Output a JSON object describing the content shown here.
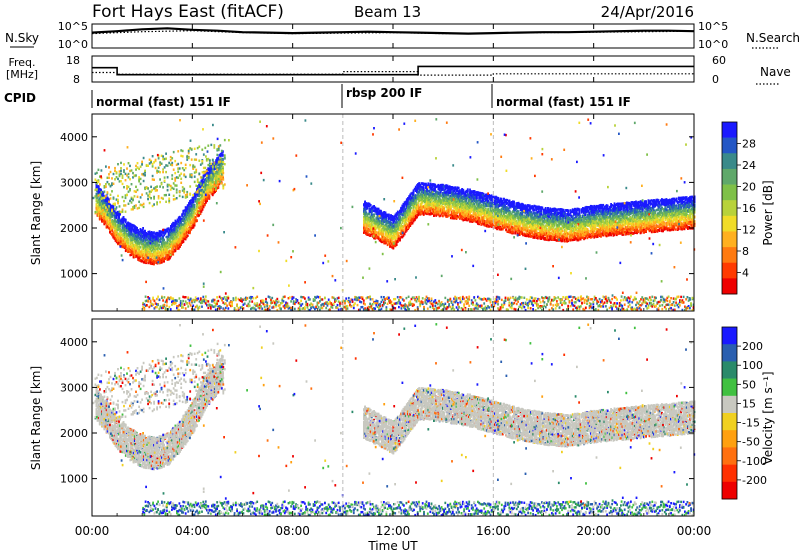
{
  "header": {
    "station": "Fort Hays East (fitACF)",
    "beam": "Beam 13",
    "date": "24/Apr/2016"
  },
  "chart_data": [
    {
      "type": "line",
      "panel": "noise",
      "left_label": "N.Sky",
      "right_label": "N.Search",
      "left_ticks": [
        "10^5",
        "10^0"
      ],
      "right_ticks": [
        "10^5",
        "10^0"
      ],
      "series": [
        {
          "name": "N.Sky",
          "style": "solid",
          "x": [
            0,
            1,
            2,
            3,
            4,
            5,
            6,
            7,
            8,
            9,
            10,
            11,
            12,
            13,
            14,
            15,
            16,
            17,
            18,
            19,
            20,
            21,
            22,
            23,
            24
          ],
          "values": [
            3.2,
            3.5,
            3.9,
            4.1,
            3.8,
            3.6,
            3.3,
            3.2,
            3.1,
            3.2,
            3.3,
            3.4,
            3.3,
            3.2,
            3.1,
            3.0,
            3.1,
            3.2,
            3.3,
            3.3,
            3.4,
            3.5,
            3.6,
            3.6,
            3.5
          ]
        },
        {
          "name": "N.Search",
          "style": "dotted",
          "x": [
            0,
            2,
            4,
            6,
            8,
            10,
            12,
            14,
            16,
            18,
            20,
            22,
            24
          ],
          "values": [
            3.0,
            3.4,
            3.6,
            3.2,
            3.0,
            3.1,
            3.2,
            3.0,
            3.1,
            3.2,
            3.3,
            3.4,
            3.5
          ]
        }
      ]
    },
    {
      "type": "line",
      "panel": "frequency",
      "left_label": "Freq.",
      "left_units": "[MHz]",
      "right_label": "Nave",
      "left_ticks": [
        "18",
        "8"
      ],
      "right_ticks": [
        "60",
        "0"
      ],
      "series": [
        {
          "name": "Freq.",
          "style": "solid",
          "x": [
            0,
            1.0,
            1.0,
            13.0,
            13.0,
            24
          ],
          "values": [
            13.5,
            13.5,
            10.8,
            10.8,
            14.0,
            14.0
          ]
        },
        {
          "name": "Nave",
          "style": "dotted",
          "x": [
            0,
            1.0,
            1.0,
            10.0,
            10.0,
            13.0,
            13.0,
            16.0,
            16.0,
            24
          ],
          "values": [
            22,
            22,
            18,
            18,
            24,
            24,
            16,
            16,
            19,
            19
          ]
        }
      ]
    },
    {
      "type": "table",
      "panel": "cpid",
      "label": "CPID",
      "segments": [
        {
          "start": 0,
          "end": 10,
          "text": "normal (fast) 151 IF"
        },
        {
          "start": 10,
          "end": 16,
          "text": "rbsp 200 IF"
        },
        {
          "start": 16,
          "end": 24,
          "text": "normal (fast) 151 IF"
        }
      ]
    },
    {
      "type": "heatmap",
      "panel": "power",
      "ylabel": "Slant Range [km]",
      "yticks": [
        1000,
        2000,
        3000,
        4000
      ],
      "ylim": [
        180,
        4500
      ],
      "xlim": [
        0,
        24
      ],
      "colorbar": {
        "label": "Power [dB]",
        "ticks": [
          "4",
          "8",
          "12",
          "16",
          "20",
          "24",
          "28"
        ],
        "colors": [
          "#1a1aff",
          "#2457c5",
          "#3a8a8a",
          "#5fa86a",
          "#7fc048",
          "#b8d23a",
          "#f0dc28",
          "#ffb020",
          "#ff7a10",
          "#ff3a00",
          "#ee0000"
        ]
      },
      "trace": [
        {
          "t": 0.1,
          "r": 2300
        },
        {
          "t": 0.5,
          "r": 2050
        },
        {
          "t": 1.0,
          "r": 1650
        },
        {
          "t": 1.5,
          "r": 1400
        },
        {
          "t": 2.0,
          "r": 1250
        },
        {
          "t": 2.5,
          "r": 1200
        },
        {
          "t": 3.0,
          "r": 1300
        },
        {
          "t": 3.5,
          "r": 1600
        },
        {
          "t": 4.0,
          "r": 2000
        },
        {
          "t": 4.5,
          "r": 2550
        },
        {
          "t": 5.2,
          "r": 3000
        },
        {
          "t": 10.8,
          "r": 1900
        },
        {
          "t": 11.5,
          "r": 1700
        },
        {
          "t": 12.0,
          "r": 1550
        },
        {
          "t": 13.0,
          "r": 2300
        },
        {
          "t": 14.0,
          "r": 2250
        },
        {
          "t": 15.0,
          "r": 2150
        },
        {
          "t": 16.0,
          "r": 2000
        },
        {
          "t": 17.0,
          "r": 1850
        },
        {
          "t": 18.0,
          "r": 1750
        },
        {
          "t": 19.0,
          "r": 1700
        },
        {
          "t": 20.0,
          "r": 1800
        },
        {
          "t": 21.0,
          "r": 1850
        },
        {
          "t": 22.0,
          "r": 1900
        },
        {
          "t": 23.0,
          "r": 1950
        },
        {
          "t": 24.0,
          "r": 2000
        }
      ]
    },
    {
      "type": "heatmap",
      "panel": "velocity",
      "ylabel": "Slant Range [km]",
      "yticks": [
        1000,
        2000,
        3000,
        4000
      ],
      "ylim": [
        180,
        4500
      ],
      "xlim": [
        0,
        24
      ],
      "colorbar": {
        "label": "Velocity [m s⁻¹]",
        "ticks": [
          "200",
          "100",
          "50",
          "15",
          "-15",
          "-50",
          "-100",
          "-200"
        ],
        "colors": [
          "#1a1aff",
          "#2a5fb0",
          "#2a8a6a",
          "#40c040",
          "#c8c8c0",
          "#f0d020",
          "#ffa010",
          "#ff7010",
          "#ff3000",
          "#ee0000"
        ]
      }
    }
  ],
  "xaxis": {
    "label": "Time UT",
    "ticks": [
      "00:00",
      "04:00",
      "08:00",
      "12:00",
      "16:00",
      "20:00",
      "00:00"
    ]
  }
}
